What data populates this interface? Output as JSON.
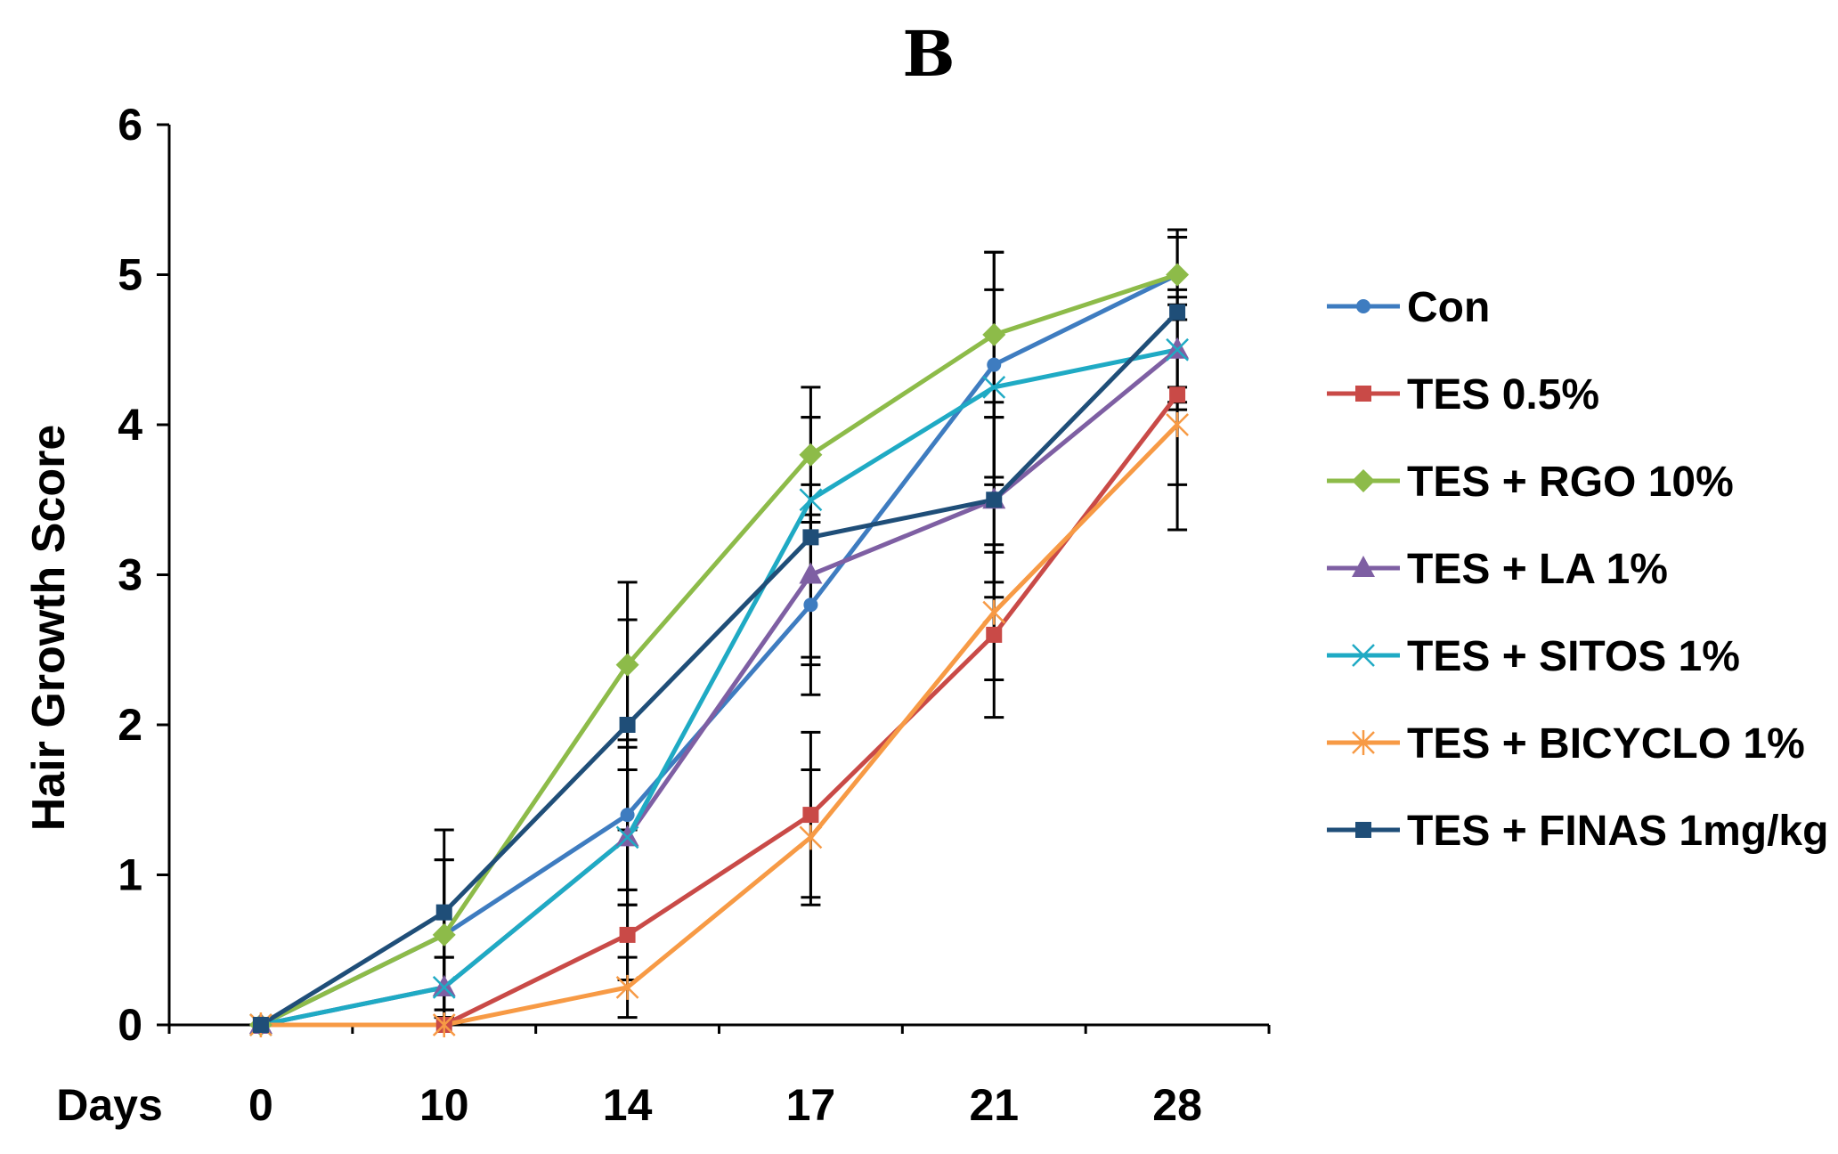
{
  "chart_data": {
    "type": "line",
    "title": "B",
    "xlabel": "Days",
    "ylabel": "Hair Growth Score",
    "categories": [
      "0",
      "10",
      "14",
      "17",
      "21",
      "28"
    ],
    "ylim": [
      0,
      6
    ],
    "yticks": [
      "0",
      "1",
      "2",
      "3",
      "4",
      "5",
      "6"
    ],
    "grid": false,
    "legend_position": "right",
    "series": [
      {
        "name": "Con",
        "color": "#3E7CC0",
        "marker": "circle",
        "values": [
          0,
          0.6,
          1.4,
          2.8,
          4.4,
          5.0
        ],
        "errors": [
          0,
          0.5,
          0.5,
          0.6,
          0.75,
          0.3
        ]
      },
      {
        "name": "TES 0.5%",
        "color": "#C94A47",
        "marker": "square",
        "values": [
          0,
          0,
          0.6,
          1.4,
          2.6,
          4.2
        ],
        "errors": [
          0,
          0,
          0.3,
          0.55,
          0.55,
          0.6
        ]
      },
      {
        "name": "TES + RGO 10%",
        "color": "#8DBB49",
        "marker": "diamond",
        "values": [
          0,
          0.6,
          2.4,
          3.8,
          4.6,
          5.0
        ],
        "errors": [
          0,
          0.5,
          0.55,
          0.45,
          0.55,
          0.3
        ]
      },
      {
        "name": "TES + LA 1%",
        "color": "#7E5FA3",
        "marker": "triangle",
        "values": [
          0,
          0.25,
          1.25,
          3.0,
          3.5,
          4.5
        ],
        "errors": [
          0,
          0.2,
          0.45,
          0.6,
          0.55,
          0.4
        ]
      },
      {
        "name": "TES + SITOS 1%",
        "color": "#1FAAC4",
        "marker": "x",
        "values": [
          0,
          0.25,
          1.25,
          3.5,
          4.25,
          4.5
        ],
        "errors": [
          0,
          0.2,
          0.45,
          0.55,
          0.65,
          0.35
        ]
      },
      {
        "name": "TES + BICYCLO 1%",
        "color": "#F79A45",
        "marker": "star",
        "values": [
          0,
          0,
          0.25,
          1.25,
          2.75,
          4.0
        ],
        "errors": [
          0,
          0,
          0.2,
          0.45,
          0.45,
          0.7
        ]
      },
      {
        "name": "TES + FINAS 1mg/kg",
        "color": "#1F4E78",
        "marker": "square",
        "values": [
          0,
          0.75,
          2.0,
          3.25,
          3.5,
          4.75
        ],
        "errors": [
          0,
          0.55,
          0.7,
          0.8,
          0.65,
          0.5
        ]
      }
    ]
  }
}
